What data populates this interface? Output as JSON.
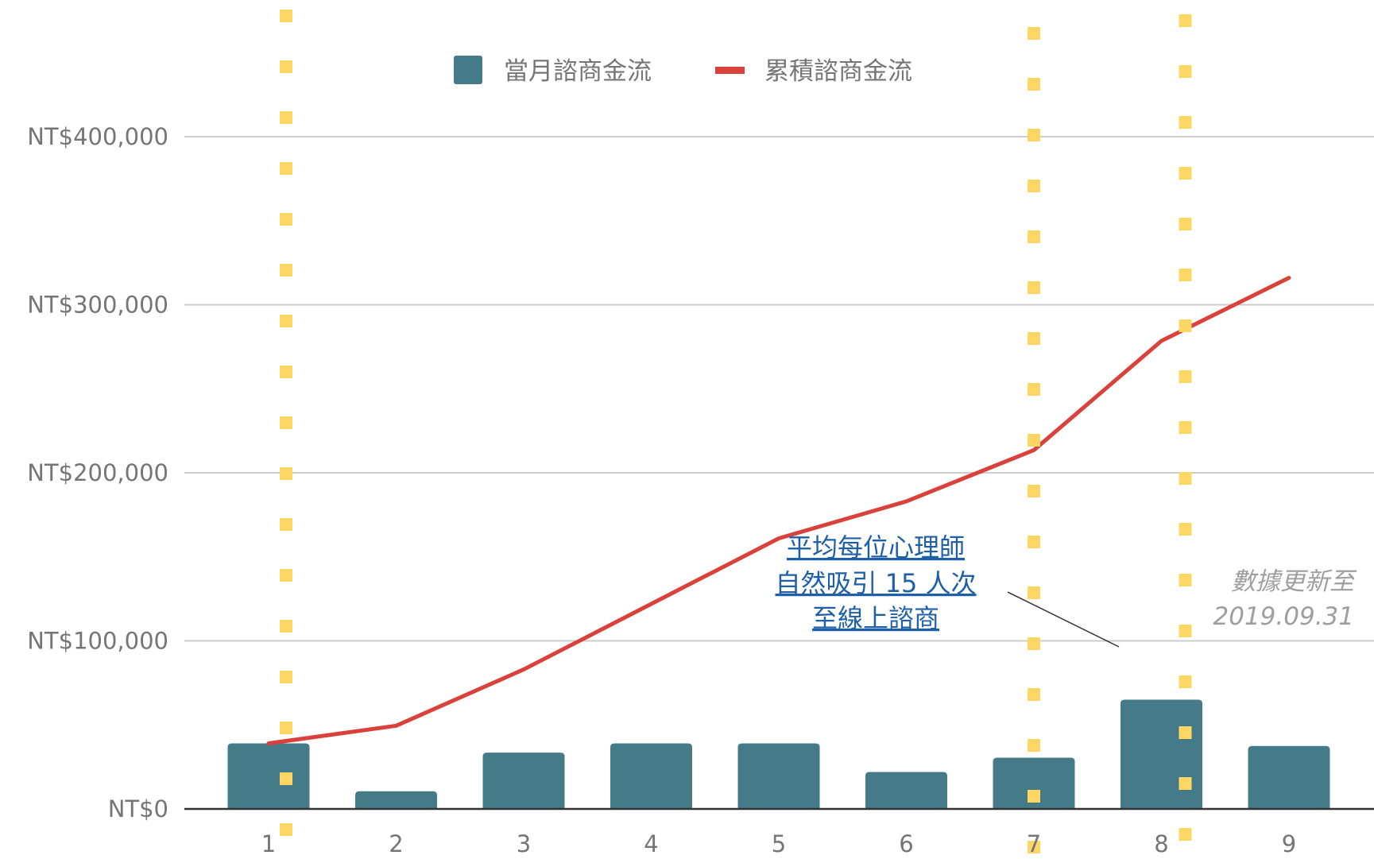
{
  "chart_data": {
    "type": "bar",
    "categories": [
      "1",
      "2",
      "3",
      "4",
      "5",
      "6",
      "7",
      "8",
      "9"
    ],
    "series": [
      {
        "name": "當月諮商金流",
        "type": "bar",
        "color": "#457b88",
        "values": [
          39000,
          10500,
          33500,
          39000,
          39000,
          22000,
          30500,
          65000,
          37500
        ]
      },
      {
        "name": "累積諮商金流",
        "type": "line",
        "color": "#d9413a",
        "values": [
          39000,
          49500,
          83000,
          122000,
          161000,
          183000,
          213500,
          278500,
          316000
        ]
      }
    ],
    "ylim": [
      0,
      400000
    ],
    "yticks": [
      {
        "value": 0,
        "label": "NT$0"
      },
      {
        "value": 100000,
        "label": "NT$100,000"
      },
      {
        "value": 200000,
        "label": "NT$200,000"
      },
      {
        "value": 300000,
        "label": "NT$300,000"
      },
      {
        "value": 400000,
        "label": "NT$400,000"
      }
    ],
    "grid": true,
    "legend_position": "top",
    "highlight_categories": [
      "1",
      "7",
      "8"
    ],
    "highlight_color": "#fdd663",
    "annotation": {
      "lines": [
        "平均每位心理師",
        "自然吸引 15 人次",
        "至線上諮商"
      ],
      "points_to_category": "8",
      "color": "#1f5fa8"
    },
    "note": {
      "lines": [
        "數據更新至",
        "2019.09.31"
      ],
      "color": "#9e9e9e"
    }
  }
}
